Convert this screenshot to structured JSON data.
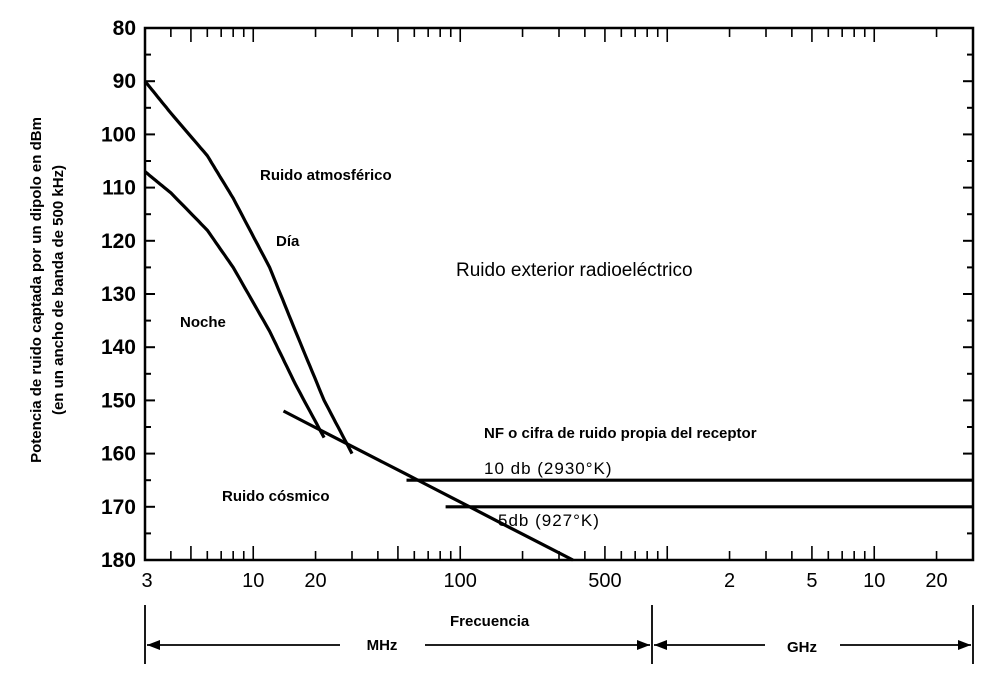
{
  "chart_data": {
    "type": "line",
    "ylabel_lines": [
      "Potencia de ruido captada por un dipolo en dBm",
      "(en un ancho de banda de 500 kHz)"
    ],
    "xlabel": "Frecuencia",
    "x_scale": "log",
    "x_unit_note": "MHz",
    "xlim": [
      3,
      30000
    ],
    "ylim": [
      80,
      180
    ],
    "y_inverted": true,
    "grid": false,
    "y_ticks": [
      80,
      90,
      100,
      110,
      120,
      130,
      140,
      150,
      160,
      170,
      180
    ],
    "y_tick_labels": [
      "80",
      "90",
      "100",
      "110",
      "120",
      "130",
      "140",
      "150",
      "160",
      "170",
      "180"
    ],
    "x_major_ticks": [
      {
        "x": 3,
        "label": "3"
      },
      {
        "x": 10,
        "label": "10"
      },
      {
        "x": 20,
        "label": "20"
      },
      {
        "x": 100,
        "label": "100"
      },
      {
        "x": 500,
        "label": "500"
      },
      {
        "x": 2000,
        "label": "2"
      },
      {
        "x": 5000,
        "label": "5"
      },
      {
        "x": 10000,
        "label": "10"
      },
      {
        "x": 20000,
        "label": "20"
      }
    ],
    "bands": [
      {
        "label": "MHz",
        "from": 3,
        "to": 1000
      },
      {
        "label": "GHz",
        "from": 1000,
        "to": 30000
      }
    ],
    "series": [
      {
        "key": "dia",
        "x": [
          3,
          4,
          6,
          8,
          12,
          16,
          22,
          30
        ],
        "y": [
          90,
          96,
          104,
          112,
          125,
          137,
          150,
          160
        ]
      },
      {
        "key": "noche",
        "x": [
          3,
          4,
          6,
          8,
          12,
          16,
          22
        ],
        "y": [
          107,
          111,
          118,
          125,
          137,
          147,
          157
        ]
      },
      {
        "key": "cosmico",
        "x": [
          14,
          350
        ],
        "y": [
          152,
          180
        ]
      },
      {
        "key": "nf10",
        "x": [
          55,
          30000
        ],
        "y": [
          165,
          165
        ]
      },
      {
        "key": "nf5",
        "x": [
          85,
          30000
        ],
        "y": [
          170,
          170
        ]
      }
    ],
    "annotations": {
      "atmosferico": "Ruido atmosférico",
      "dia": "Día",
      "noche": "Noche",
      "exterior": "Ruido exterior radioeléctrico",
      "nf_title": "NF o cifra de ruido propia del receptor",
      "nf10": "10 db (2930°K)",
      "nf5": "5db (927°K)",
      "cosmico": "Ruido cósmico"
    }
  }
}
